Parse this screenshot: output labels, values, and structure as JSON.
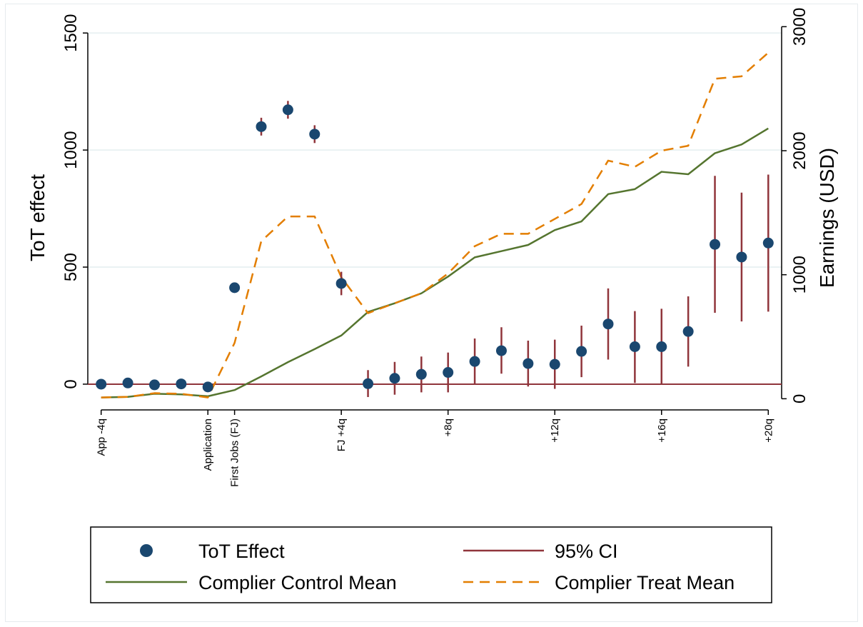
{
  "chart_data": {
    "type": "scatter",
    "left_axis": {
      "label": "ToT effect",
      "range": [
        -110,
        1580
      ],
      "ticks": [
        0,
        500,
        1000,
        1500
      ]
    },
    "right_axis": {
      "label": "Earnings (USD)",
      "range": [
        -90,
        3100
      ],
      "ticks": [
        0,
        1000,
        2000,
        3000
      ]
    },
    "x_range": [
      -0.5,
      25.5
    ],
    "x_ticks": [
      {
        "x": 0,
        "label": "App -4q"
      },
      {
        "x": 4,
        "label": "Application"
      },
      {
        "x": 5,
        "label": "First Jobs (FJ)"
      },
      {
        "x": 9,
        "label": "FJ +4q"
      },
      {
        "x": 13,
        "label": "+8q"
      },
      {
        "x": 17,
        "label": "+12q"
      },
      {
        "x": 21,
        "label": "+16q"
      },
      {
        "x": 25,
        "label": "+20q"
      }
    ],
    "grid": true,
    "legend_position": "bottom",
    "zero_line": 0,
    "colors": {
      "effect": "#1a476f",
      "ci": "#90353b",
      "control": "#55752f",
      "treat": "#e37e00",
      "grid": "#eaf2f3"
    },
    "series": [
      {
        "name": "ToT Effect",
        "axis": "left",
        "style": "marker",
        "x": [
          0,
          1,
          2,
          3,
          4,
          5,
          6,
          7,
          8,
          9,
          10,
          11,
          12,
          13,
          14,
          15,
          16,
          17,
          18,
          19,
          20,
          21,
          22,
          23,
          24,
          25
        ],
        "values": [
          0,
          5,
          -3,
          1,
          -12,
          412,
          1100,
          1172,
          1068,
          430,
          2,
          25,
          42,
          50,
          97,
          143,
          88,
          85,
          140,
          257,
          160,
          160,
          225,
          597,
          543,
          603
        ]
      },
      {
        "name": "95% CI",
        "axis": "left",
        "style": "errorbar",
        "x": [
          0,
          1,
          2,
          3,
          4,
          5,
          6,
          7,
          8,
          9,
          10,
          11,
          12,
          13,
          14,
          15,
          16,
          17,
          18,
          19,
          20,
          21,
          22,
          23,
          24,
          25
        ],
        "low": [
          -8,
          -3,
          -10,
          -7,
          -22,
          392,
          1062,
          1134,
          1030,
          380,
          -55,
          -45,
          -35,
          -35,
          0,
          45,
          -10,
          -20,
          30,
          105,
          5,
          0,
          75,
          305,
          268,
          310
        ],
        "high": [
          8,
          13,
          4,
          9,
          -2,
          432,
          1138,
          1210,
          1106,
          480,
          60,
          95,
          118,
          135,
          195,
          243,
          186,
          190,
          250,
          409,
          312,
          322,
          375,
          890,
          818,
          895
        ]
      },
      {
        "name": "Complier Control Mean",
        "axis": "right",
        "style": "line",
        "x": [
          0,
          1,
          2,
          3,
          4,
          5,
          6,
          7,
          8,
          9,
          10,
          11,
          12,
          13,
          14,
          15,
          16,
          17,
          18,
          19,
          20,
          21,
          22,
          23,
          24,
          25
        ],
        "values": [
          10,
          15,
          40,
          35,
          20,
          70,
          180,
          295,
          400,
          510,
          700,
          770,
          850,
          985,
          1140,
          1190,
          1240,
          1360,
          1430,
          1650,
          1690,
          1830,
          1810,
          1980,
          2050,
          2180
        ]
      },
      {
        "name": "Complier Treat Mean",
        "axis": "right",
        "style": "dashed",
        "x": [
          0,
          1,
          2,
          3,
          4,
          5,
          6,
          7,
          8,
          9,
          10,
          11,
          12,
          13,
          14,
          15,
          16,
          17,
          18,
          19,
          20,
          21,
          22,
          23,
          24,
          25
        ],
        "values": [
          10,
          15,
          45,
          40,
          10,
          450,
          1270,
          1470,
          1470,
          980,
          690,
          770,
          850,
          1010,
          1230,
          1330,
          1330,
          1450,
          1570,
          1920,
          1870,
          2000,
          2040,
          2580,
          2600,
          2790
        ]
      }
    ]
  },
  "legend": {
    "items": [
      {
        "label": "ToT Effect",
        "symbol": "marker"
      },
      {
        "label": "95% CI",
        "symbol": "line"
      },
      {
        "label": "Complier Control Mean",
        "symbol": "line"
      },
      {
        "label": "Complier Treat Mean",
        "symbol": "dashed"
      }
    ]
  }
}
